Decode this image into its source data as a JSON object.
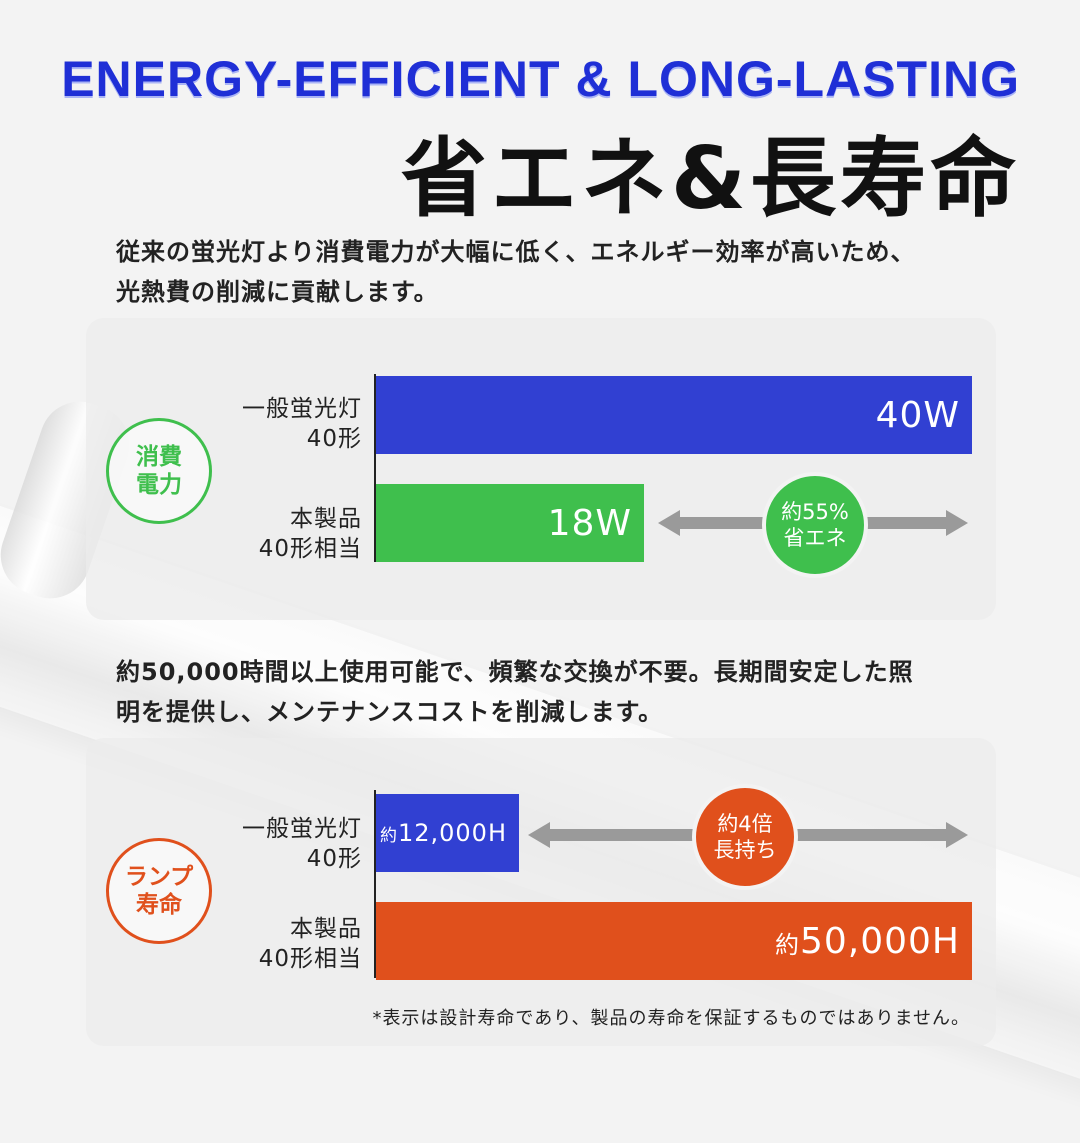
{
  "title_en": "ENERGY-EFFICIENT & LONG-LASTING",
  "title_jp": "省エネ&長寿命",
  "para1": {
    "line1": "従来の蛍光灯より消費電力が大幅に低く、エネルギー効率が高いため、",
    "line2": "光熱費の削減に貢献します。"
  },
  "para2": {
    "line1": "約50,000時間以上使用可能で、頻繁な交換が不要。長期間安定した照",
    "line2": "明を提供し、メンテナンスコストを削減します。"
  },
  "colors": {
    "blue": "#3140d2",
    "green": "#3fbf4d",
    "orange": "#e0501c",
    "title_blue": "#1f2fd6"
  },
  "chart_data": [
    {
      "type": "bar",
      "orientation": "horizontal",
      "badge": {
        "line1": "消費",
        "line2": "電力"
      },
      "categories": [
        {
          "line1": "一般蛍光灯",
          "line2": "40形"
        },
        {
          "line1": "本製品",
          "line2": "40形相当"
        }
      ],
      "values": [
        40,
        18
      ],
      "unit": "W",
      "value_labels": [
        {
          "prefix": "",
          "text": "40W"
        },
        {
          "prefix": "",
          "text": "18W"
        }
      ],
      "xlim": [
        0,
        40
      ],
      "callout": {
        "line1": "約55%",
        "line2": "省エネ"
      }
    },
    {
      "type": "bar",
      "orientation": "horizontal",
      "badge": {
        "line1": "ランプ",
        "line2": "寿命"
      },
      "categories": [
        {
          "line1": "一般蛍光灯",
          "line2": "40形"
        },
        {
          "line1": "本製品",
          "line2": "40形相当"
        }
      ],
      "values": [
        12000,
        50000
      ],
      "unit": "H",
      "value_labels": [
        {
          "prefix": "約",
          "text": "12,000H"
        },
        {
          "prefix": "約",
          "text": "50,000H"
        }
      ],
      "xlim": [
        0,
        50000
      ],
      "callout": {
        "line1": "約4倍",
        "line2": "長持ち"
      }
    }
  ],
  "note": "*表示は設計寿命であり、製品の寿命を保証するものではありません。"
}
